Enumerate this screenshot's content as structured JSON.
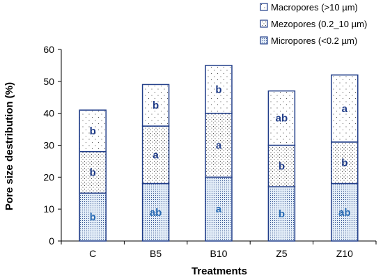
{
  "chart_data": {
    "type": "bar",
    "stacked": true,
    "categories": [
      "C",
      "B5",
      "B10",
      "Z5",
      "Z10"
    ],
    "series": [
      {
        "name": "Micropores (<0.2 µm)",
        "values": [
          15,
          18,
          20,
          17,
          18
        ],
        "labels": [
          "b",
          "ab",
          "a",
          "b",
          "ab"
        ],
        "pattern": "dense-dots",
        "fill": "#e4eef8"
      },
      {
        "name": "Mezopores (0.2_10 µm)",
        "values": [
          13,
          18,
          20,
          13,
          13
        ],
        "labels": [
          "b",
          "a",
          "a",
          "b",
          "b"
        ],
        "pattern": "medium-dots",
        "fill": "#ffffff"
      },
      {
        "name": "Macropores (>10 µm)",
        "values": [
          13,
          13,
          15,
          17,
          21
        ],
        "labels": [
          "b",
          "b",
          "b",
          "ab",
          "a"
        ],
        "pattern": "sparse-dots",
        "fill": "#ffffff"
      }
    ],
    "title": "",
    "xlabel": "Treatments",
    "ylabel": "Pore size destribution (%)",
    "ylim": [
      0,
      60
    ],
    "yticks": [
      0,
      10,
      20,
      30,
      40,
      50,
      60
    ],
    "grid": false,
    "legend_position": "top-right",
    "colors": {
      "bar_border": "#1f3c88",
      "label_text": "#1f3c88",
      "label_text_bottom": "#2a6db5",
      "axis": "#000000"
    }
  }
}
